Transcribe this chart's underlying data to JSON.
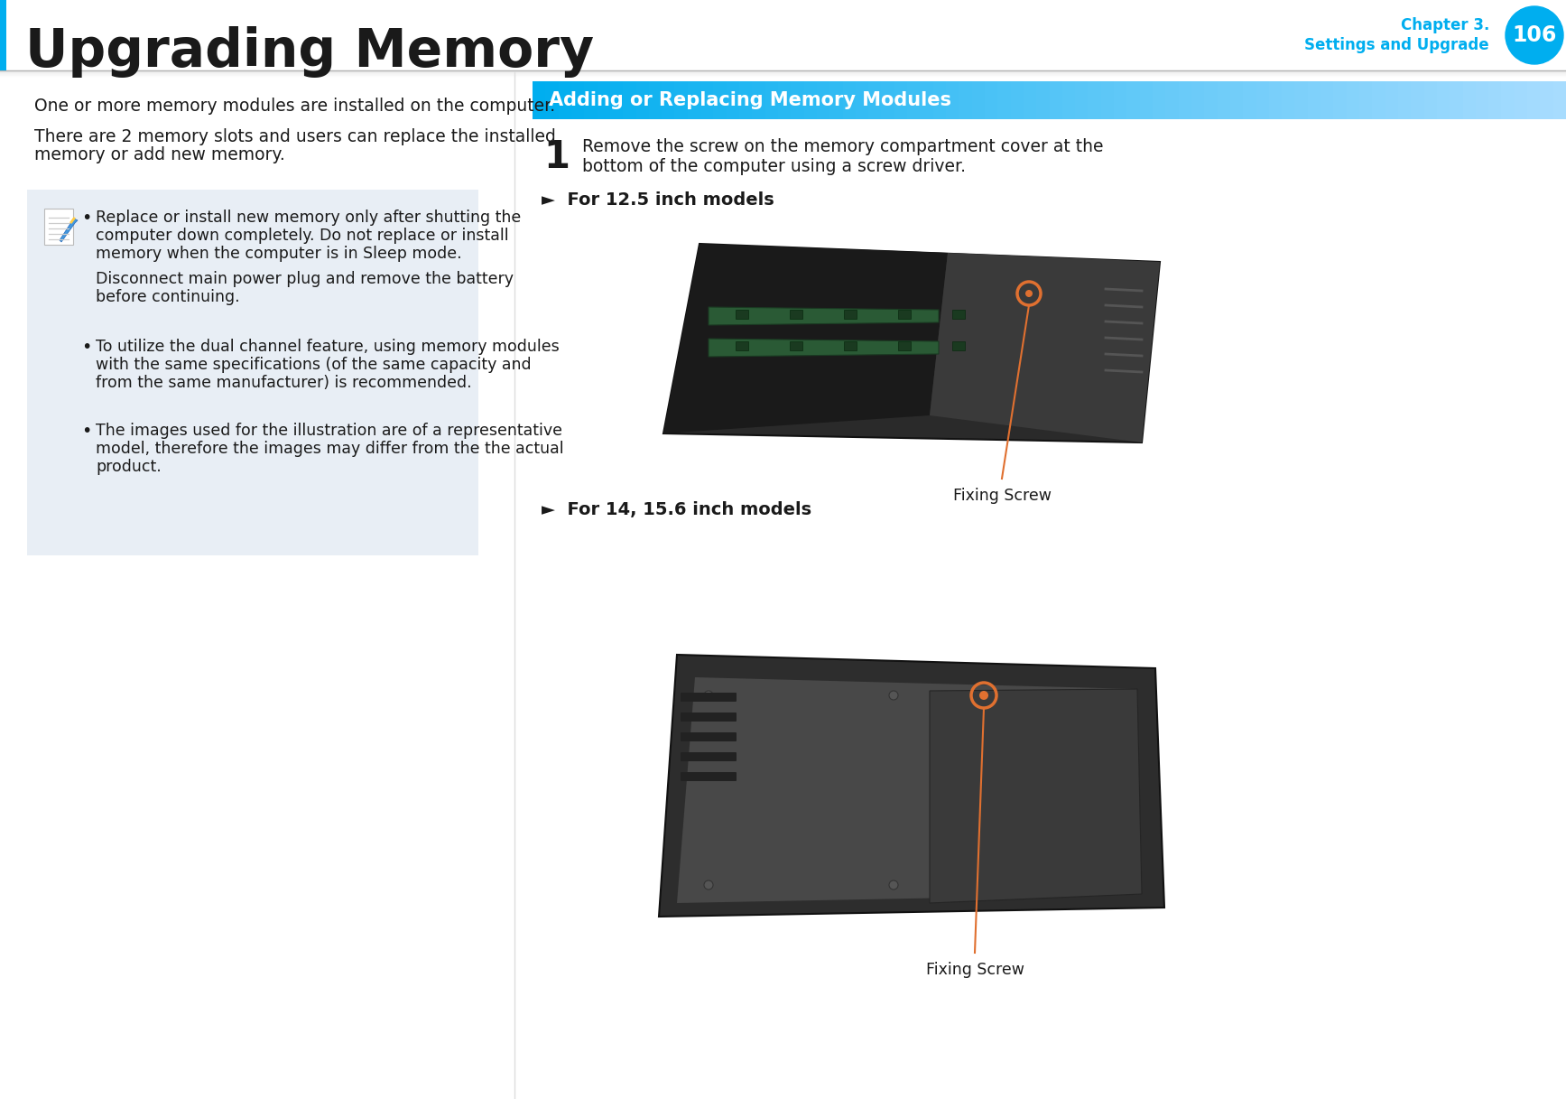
{
  "page_title": "Upgrading Memory",
  "chapter_line1": "Chapter 3.",
  "chapter_line2": "Settings and Upgrade",
  "page_number": "106",
  "cyan_color": "#00AEEF",
  "background_color": "#FFFFFF",
  "text_color": "#1a1a1a",
  "note_bg_color": "#E8EEF5",
  "orange_color": "#E07030",
  "gray_line_color": "#CCCCCC",
  "para1": "One or more memory modules are installed on the computer.",
  "para2_l1": "There are 2 memory slots and users can replace the installed",
  "para2_l2": "memory or add new memory.",
  "b1_l1": "Replace or install new memory only after shutting the",
  "b1_l2": "computer down completely. Do not replace or install",
  "b1_l3": "memory when the computer is in Sleep mode.",
  "b1_l4": "Disconnect main power plug and remove the battery",
  "b1_l5": "before continuing.",
  "b2_l1": "To utilize the dual channel feature, using memory modules",
  "b2_l2": "with the same specifications (of the same capacity and",
  "b2_l3": "from the same manufacturer) is recommended.",
  "b3_l1": "The images used for the illustration are of a representative",
  "b3_l2": "model, therefore the images may differ from the the actual",
  "b3_l3": "product.",
  "section_header": "Adding or Replacing Memory Modules",
  "step1_num": "1",
  "step1_l1": "Remove the screw on the memory compartment cover at the",
  "step1_l2": "bottom of the computer using a screw driver.",
  "model1_label": "►  For 12.5 inch models",
  "model2_label": "►  For 14, 15.6 inch models",
  "fixing_screw": "Fixing Screw"
}
